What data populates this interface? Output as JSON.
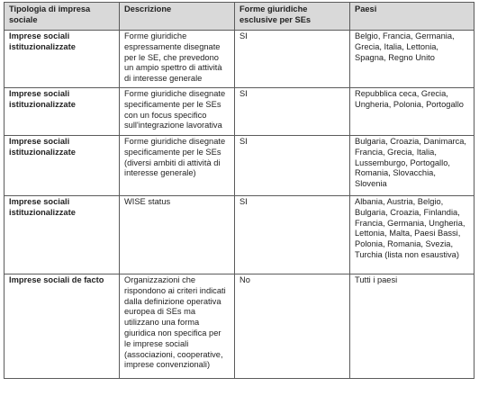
{
  "table": {
    "headers": [
      "Tipologia di impresa sociale",
      "Descrizione",
      "Forme giuridiche esclusive per SEs",
      "Paesi"
    ],
    "rows": [
      {
        "type": "Imprese sociali istituzionalizzate",
        "description": "Forme giuridiche espressamente disegnate per le SE, che prevedono un ampio spettro di attività di interesse generale",
        "exclusive": "SI",
        "countries": "Belgio, Francia, Germania, Grecia, Italia, Lettonia, Spagna, Regno Unito"
      },
      {
        "type": "Imprese sociali istituzionalizzate",
        "description": "Forme giuridiche disegnate specificamente per le SEs con un focus specifico sull'integrazione lavorativa",
        "exclusive": "SI",
        "countries": "Repubblica ceca, Grecia, Ungheria, Polonia, Portogallo"
      },
      {
        "type": "Imprese sociali istituzionalizzate",
        "description": "Forme giuridiche disegnate specificamente per le SEs (diversi ambiti di attività di interesse generale)",
        "exclusive": "SI",
        "countries": "Bulgaria, Croazia, Danimarca, Francia, Grecia, Italia, Lussemburgo, Portogallo, Romania, Slovacchia, Slovenia"
      },
      {
        "type": "Imprese sociali istituzionalizzate",
        "description": "WISE status",
        "exclusive": "SI",
        "countries": "Albania, Austria, Belgio, Bulgaria, Croazia, Finlandia, Francia, Germania, Ungheria, Lettonia, Malta, Paesi Bassi, Polonia, Romania, Svezia, Turchia (lista non esaustiva)"
      },
      {
        "type": "Imprese sociali de facto",
        "description": "Organizzazioni che rispondono ai criteri indicati dalla definizione operativa europea di SEs ma utilizzano una forma giuridica non specifica per le imprese sociali (associazioni, cooperative, imprese convenzionali)",
        "exclusive": "No",
        "countries": "Tutti i paesi"
      }
    ]
  }
}
